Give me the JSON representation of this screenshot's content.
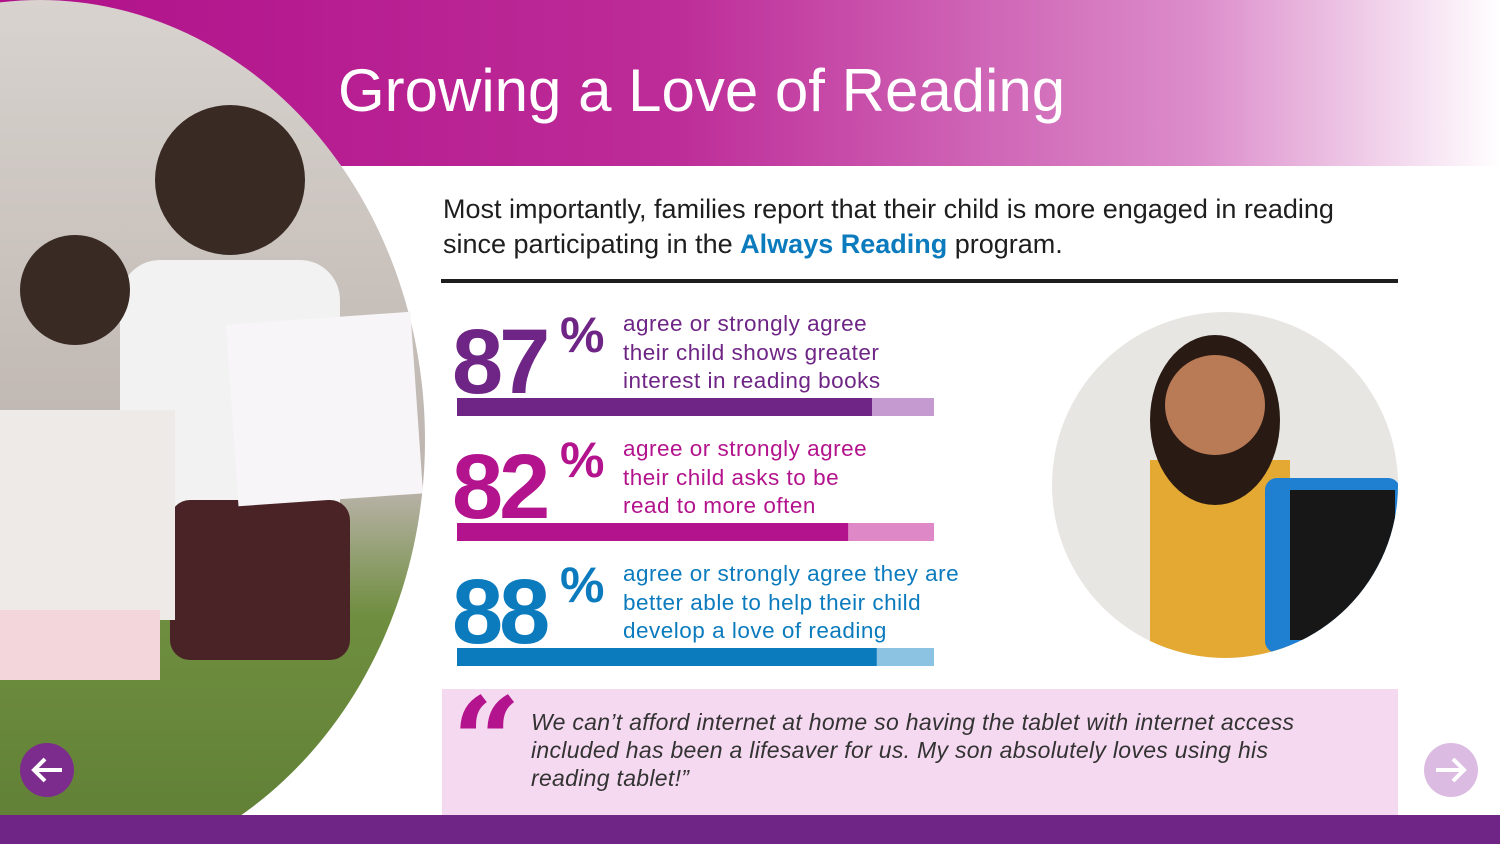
{
  "header": {
    "title": "Growing a Love of Reading"
  },
  "intro": {
    "text_before": "Most importantly, families report that their child is more engaged in reading since participating in the ",
    "highlight": "Always Reading",
    "text_after": " program."
  },
  "stats": [
    {
      "value": 87,
      "unit": "%",
      "lines": [
        "agree or strongly agree",
        "their child shows greater",
        "interest in reading books"
      ],
      "color": "#6e2585",
      "track_color": "#c49ad0"
    },
    {
      "value": 82,
      "unit": "%",
      "lines": [
        "agree or strongly agree",
        "their child asks to be",
        "read to more often"
      ],
      "color": "#b3148d",
      "track_color": "#df88c8"
    },
    {
      "value": 88,
      "unit": "%",
      "lines": [
        "agree or strongly agree they are",
        "better able to help their child",
        "develop a love of reading"
      ],
      "color": "#0b7bbd",
      "track_color": "#8cc2e2"
    }
  ],
  "quote": {
    "mark": "“",
    "lines": [
      "We can’t afford internet at home so having the tablet with internet access",
      "included has been a lifesaver for us. My son absolutely loves using his",
      "reading tablet!”"
    ]
  }
}
